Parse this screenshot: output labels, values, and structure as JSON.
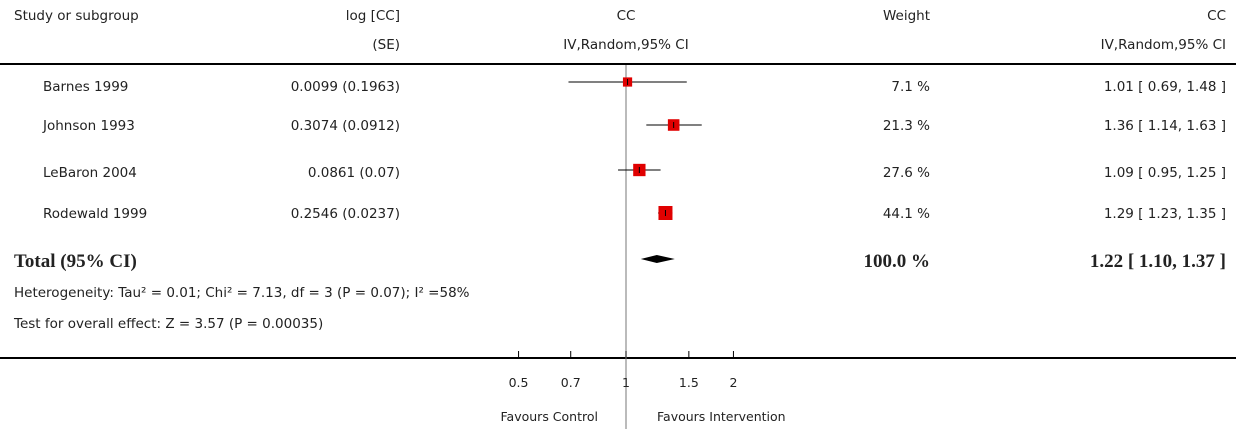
{
  "header": {
    "col_study": "Study or subgroup",
    "col_logcc_line1": "log [CC]",
    "col_logcc_line2": "(SE)",
    "col_cc_line1": "CC",
    "col_cc_line2": "IV,Random,95% CI",
    "col_weight": "Weight",
    "col_cc2_line1": "CC",
    "col_cc2_line2": "IV,Random,95% CI"
  },
  "studies": [
    {
      "name": "Barnes 1999",
      "logse": "0.0099 (0.1963)",
      "weight": "7.1 %",
      "ci_text": "1.01 [ 0.69, 1.48 ]"
    },
    {
      "name": "Johnson 1993",
      "logse": "0.3074 (0.0912)",
      "weight": "21.3 %",
      "ci_text": "1.36 [ 1.14, 1.63 ]"
    },
    {
      "name": "LeBaron 2004",
      "logse": "0.0861 (0.07)",
      "weight": "27.6 %",
      "ci_text": "1.09 [ 0.95, 1.25 ]"
    },
    {
      "name": "Rodewald 1999",
      "logse": "0.2546 (0.0237)",
      "weight": "44.1 %",
      "ci_text": "1.29 [ 1.23, 1.35 ]"
    }
  ],
  "total": {
    "label": "Total (95% CI)",
    "weight": "100.0 %",
    "ci_text": "1.22 [ 1.10, 1.37 ]"
  },
  "heterogeneity": "Heterogeneity: Tau² = 0.01; Chi² = 7.13, df = 3 (P = 0.07); I² =58%",
  "overall_effect": "Test for overall effect: Z = 3.57 (P = 0.00035)",
  "axis": {
    "ticks": [
      "0.5",
      "0.7",
      "1",
      "1.5",
      "2"
    ],
    "favours_left": "Favours Control",
    "favours_right": "Favours Intervention"
  },
  "colors": {
    "marker": "#e00000",
    "line": "#000000",
    "summary": "#000000"
  },
  "chart_data": {
    "type": "forest",
    "scale": "log",
    "xlim": [
      0.5,
      2
    ],
    "x_ticks": [
      0.5,
      0.7,
      1,
      1.5,
      2
    ],
    "null_line": 1,
    "studies": [
      {
        "name": "Barnes 1999",
        "estimate": 1.01,
        "lower": 0.69,
        "upper": 1.48,
        "weight": 7.1
      },
      {
        "name": "Johnson 1993",
        "estimate": 1.36,
        "lower": 1.14,
        "upper": 1.63,
        "weight": 21.3
      },
      {
        "name": "LeBaron 2004",
        "estimate": 1.09,
        "lower": 0.95,
        "upper": 1.25,
        "weight": 27.6
      },
      {
        "name": "Rodewald 1999",
        "estimate": 1.29,
        "lower": 1.23,
        "upper": 1.35,
        "weight": 44.1
      }
    ],
    "summary": {
      "estimate": 1.22,
      "lower": 1.1,
      "upper": 1.37
    }
  }
}
